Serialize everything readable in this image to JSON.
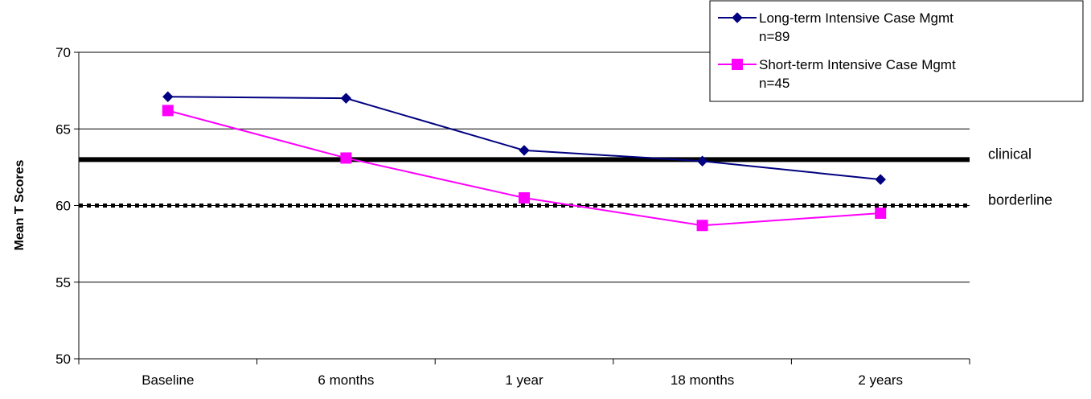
{
  "chart_data": {
    "type": "line",
    "categories": [
      "Baseline",
      "6 months",
      "1 year",
      "18 months",
      "2 years"
    ],
    "series": [
      {
        "name": "Long-term Intensive Case Mgmt",
        "sample": "n=89",
        "color": "#000080",
        "marker": "diamond",
        "values": [
          67.1,
          67.0,
          63.6,
          62.9,
          61.7
        ]
      },
      {
        "name": "Short-term Intensive Case Mgmt",
        "sample": "n=45",
        "color": "#FF00FF",
        "marker": "square",
        "values": [
          66.2,
          63.1,
          60.5,
          58.7,
          59.5
        ]
      }
    ],
    "reference_lines": [
      {
        "label": "clinical",
        "value": 63,
        "style": "solid",
        "color": "#000000"
      },
      {
        "label": "borderline",
        "value": 60,
        "style": "dotted",
        "color": "#000000"
      }
    ],
    "title": "",
    "xlabel": "",
    "ylabel": "Mean T Scores",
    "ylim": [
      50,
      70
    ],
    "yticks": [
      50,
      55,
      60,
      65,
      70
    ],
    "grid": true,
    "legend_position": "top-right"
  }
}
